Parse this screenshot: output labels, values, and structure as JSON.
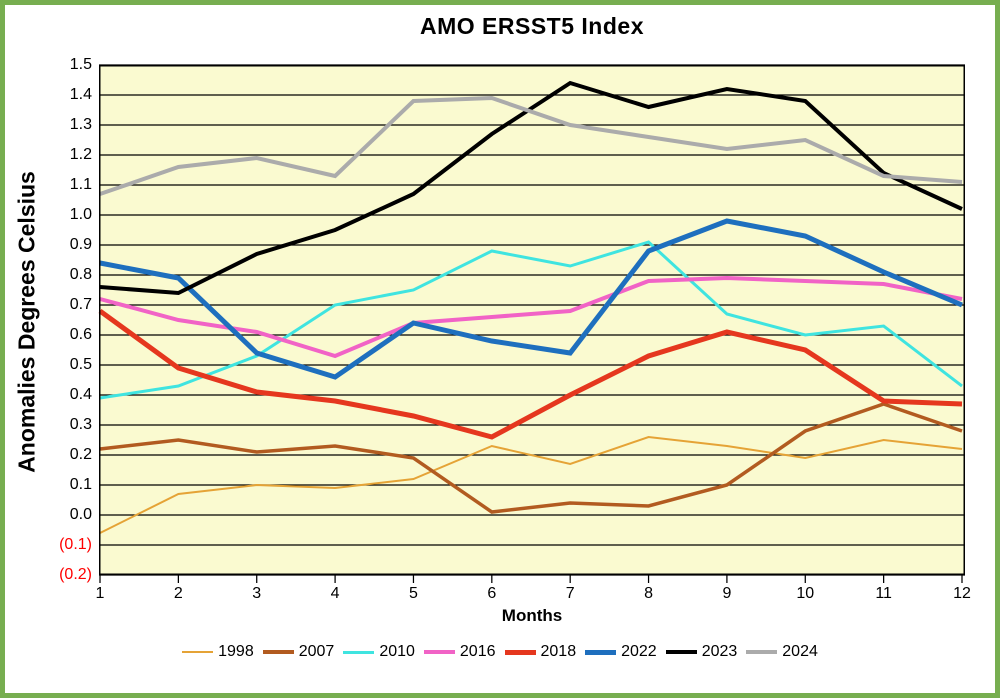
{
  "frame": {
    "border_color": "#77AE50",
    "page_background": "#FFFFFF"
  },
  "chart_data": {
    "type": "line",
    "title": "AMO ERSST5 Index",
    "xlabel": "Months",
    "ylabel": "Anomalies Degrees Celsius",
    "x": [
      1,
      2,
      3,
      4,
      5,
      6,
      7,
      8,
      9,
      10,
      11,
      12
    ],
    "xlim": [
      1,
      12
    ],
    "ylim": [
      -0.2,
      1.5
    ],
    "ytick_step": 0.1,
    "grid": true,
    "plot_background": "#FAFAD0",
    "grid_color": "#000000",
    "negative_tick_color": "#FF0000",
    "negative_tick_style": "parentheses",
    "legend_position": "bottom",
    "series": [
      {
        "name": "1998",
        "color": "#E5A336",
        "width": 2,
        "values": [
          -0.06,
          0.07,
          0.1,
          0.09,
          0.12,
          0.23,
          0.17,
          0.26,
          0.23,
          0.19,
          0.25,
          0.22
        ]
      },
      {
        "name": "2007",
        "color": "#B25B20",
        "width": 3.5,
        "values": [
          0.22,
          0.25,
          0.21,
          0.23,
          0.19,
          0.01,
          0.04,
          0.03,
          0.1,
          0.28,
          0.37,
          0.28
        ]
      },
      {
        "name": "2010",
        "color": "#3FE4E0",
        "width": 3,
        "values": [
          0.39,
          0.43,
          0.53,
          0.7,
          0.75,
          0.88,
          0.83,
          0.91,
          0.67,
          0.6,
          0.63,
          0.43
        ]
      },
      {
        "name": "2016",
        "color": "#F163C6",
        "width": 4,
        "values": [
          0.72,
          0.65,
          0.61,
          0.53,
          0.64,
          0.66,
          0.68,
          0.78,
          0.79,
          0.78,
          0.77,
          0.72
        ]
      },
      {
        "name": "2018",
        "color": "#E5371E",
        "width": 5,
        "values": [
          0.68,
          0.49,
          0.41,
          0.38,
          0.33,
          0.26,
          0.4,
          0.53,
          0.61,
          0.55,
          0.38,
          0.37
        ]
      },
      {
        "name": "2022",
        "color": "#1E6FBE",
        "width": 5,
        "values": [
          0.84,
          0.79,
          0.54,
          0.46,
          0.64,
          0.58,
          0.54,
          0.88,
          0.98,
          0.93,
          0.81,
          0.7
        ]
      },
      {
        "name": "2023",
        "color": "#000000",
        "width": 4,
        "values": [
          0.76,
          0.74,
          0.87,
          0.95,
          1.07,
          1.27,
          1.44,
          1.36,
          1.42,
          1.38,
          1.14,
          1.02
        ]
      },
      {
        "name": "2024",
        "color": "#ABABAB",
        "width": 4,
        "values": [
          1.07,
          1.16,
          1.19,
          1.13,
          1.38,
          1.39,
          1.3,
          1.26,
          1.22,
          1.25,
          1.13,
          1.11
        ]
      }
    ]
  }
}
